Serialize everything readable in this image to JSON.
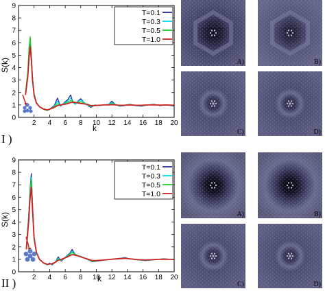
{
  "chart_data": [
    {
      "type": "line",
      "panel_label": "I )",
      "xlabel": "k",
      "ylabel": "S(k)",
      "xlim": [
        0,
        20
      ],
      "ylim": [
        0,
        9
      ],
      "xticks": [
        2,
        4,
        6,
        8,
        10,
        12,
        14,
        16,
        18,
        20
      ],
      "yticks": [
        0,
        1,
        2,
        3,
        4,
        5,
        6,
        7,
        8,
        9
      ],
      "grid": false,
      "legend": "top-right",
      "series": [
        {
          "name": "T=0.1",
          "color": "#1f2a9a",
          "x": [
            0.9,
            1.2,
            1.35,
            1.5,
            1.65,
            1.8,
            2.0,
            2.3,
            2.7,
            3.2,
            3.7,
            4.2,
            4.6,
            5.0,
            5.4,
            5.9,
            6.3,
            6.7,
            7.0,
            7.3,
            7.7,
            8.0,
            8.4,
            8.8,
            9.3,
            9.8,
            10.4,
            11.0,
            11.6,
            12.0,
            12.4,
            13.0,
            13.6,
            14.3,
            15.0,
            15.8,
            16.6,
            17.4,
            18.2,
            19.0,
            19.6,
            20.0
          ],
          "y": [
            2.0,
            3.5,
            5.2,
            6.3,
            5.0,
            3.2,
            1.9,
            1.2,
            0.85,
            0.65,
            0.55,
            0.75,
            0.95,
            1.55,
            0.9,
            1.2,
            1.4,
            1.8,
            1.2,
            1.05,
            1.35,
            1.5,
            1.2,
            1.0,
            0.8,
            1.0,
            0.95,
            1.0,
            1.05,
            1.3,
            1.05,
            0.9,
            0.95,
            1.05,
            0.95,
            0.9,
            1.0,
            1.05,
            0.95,
            1.0,
            0.95,
            0.9
          ]
        },
        {
          "name": "T=0.3",
          "color": "#00d8e8",
          "x": [
            0.9,
            1.2,
            1.35,
            1.5,
            1.65,
            1.8,
            2.0,
            2.3,
            2.7,
            3.2,
            3.7,
            4.2,
            4.6,
            5.0,
            5.4,
            5.9,
            6.3,
            6.7,
            7.0,
            7.3,
            7.7,
            8.0,
            8.4,
            8.8,
            9.3,
            9.8,
            10.4,
            11.0,
            11.6,
            12.0,
            12.4,
            13.0,
            13.6,
            14.3,
            15.0,
            15.8,
            16.6,
            17.4,
            18.2,
            19.0,
            19.6,
            20.0
          ],
          "y": [
            2.0,
            3.6,
            5.4,
            6.4,
            5.0,
            3.2,
            1.9,
            1.2,
            0.85,
            0.65,
            0.55,
            0.7,
            0.9,
            1.3,
            0.95,
            1.15,
            1.3,
            1.55,
            1.25,
            1.05,
            1.3,
            1.4,
            1.2,
            1.0,
            0.85,
            1.0,
            0.95,
            1.0,
            1.05,
            1.2,
            1.05,
            0.92,
            0.97,
            1.05,
            0.95,
            0.93,
            1.0,
            1.03,
            0.97,
            1.0,
            0.97,
            0.93
          ]
        },
        {
          "name": "T=0.5",
          "color": "#22cc22",
          "x": [
            0.9,
            1.2,
            1.35,
            1.5,
            1.65,
            1.8,
            2.0,
            2.3,
            2.7,
            3.2,
            3.7,
            4.2,
            4.6,
            5.0,
            5.4,
            5.9,
            6.3,
            6.7,
            7.0,
            7.3,
            7.7,
            8.0,
            8.4,
            8.8,
            9.3,
            9.8,
            10.4,
            11.0,
            11.6,
            12.0,
            12.4,
            13.0,
            13.6,
            14.3,
            15.0,
            15.8,
            16.6,
            17.4,
            18.2,
            19.0,
            19.6,
            20.0
          ],
          "y": [
            2.0,
            3.7,
            5.6,
            6.5,
            5.0,
            3.2,
            1.9,
            1.2,
            0.85,
            0.65,
            0.55,
            0.7,
            0.85,
            1.1,
            1.0,
            1.1,
            1.2,
            1.35,
            1.3,
            1.15,
            1.2,
            1.25,
            1.15,
            1.05,
            0.9,
            0.95,
            0.97,
            1.0,
            1.02,
            1.1,
            1.03,
            0.95,
            0.98,
            1.03,
            0.97,
            0.95,
            1.0,
            1.02,
            0.98,
            1.0,
            0.98,
            0.95
          ]
        },
        {
          "name": "T=1.0",
          "color": "#cc2222",
          "x": [
            0.9,
            1.2,
            1.35,
            1.5,
            1.65,
            1.8,
            2.0,
            2.3,
            2.7,
            3.2,
            3.7,
            4.2,
            4.6,
            5.0,
            5.4,
            5.9,
            6.3,
            6.7,
            7.0,
            7.3,
            7.7,
            8.0,
            8.4,
            8.8,
            9.3,
            9.8,
            10.4,
            11.0,
            11.6,
            12.0,
            12.4,
            13.0,
            13.6,
            14.3,
            15.0,
            15.8,
            16.6,
            17.4,
            18.2,
            19.0,
            19.6,
            20.0
          ],
          "y": [
            1.8,
            3.3,
            4.8,
            5.7,
            4.6,
            3.0,
            1.8,
            1.15,
            0.85,
            0.68,
            0.6,
            0.7,
            0.8,
            0.95,
            1.0,
            1.05,
            1.1,
            1.2,
            1.22,
            1.2,
            1.15,
            1.12,
            1.08,
            1.05,
            0.95,
            0.95,
            0.97,
            1.0,
            1.0,
            1.02,
            1.0,
            0.97,
            0.98,
            1.0,
            0.98,
            0.97,
            1.0,
            1.0,
            0.99,
            1.0,
            0.99,
            0.97
          ]
        }
      ]
    },
    {
      "type": "line",
      "panel_label": "II )",
      "xlabel": "k",
      "ylabel": "S(k)",
      "xlim": [
        0,
        20
      ],
      "ylim": [
        0,
        9
      ],
      "xticks": [
        2,
        4,
        6,
        8,
        10,
        12,
        14,
        16,
        18,
        20
      ],
      "yticks": [
        0,
        1,
        2,
        3,
        4,
        5,
        6,
        7,
        8,
        9
      ],
      "grid": false,
      "legend": "top-right",
      "series": [
        {
          "name": "T=0.1",
          "color": "#1f2a9a",
          "x": [
            1.0,
            1.3,
            1.5,
            1.65,
            1.8,
            2.0,
            2.3,
            2.7,
            3.2,
            3.7,
            4.0,
            4.3,
            4.7,
            5.1,
            5.5,
            5.9,
            6.3,
            6.6,
            6.9,
            7.2,
            7.6,
            8.0,
            8.5,
            9.0,
            9.5,
            10.0,
            10.6,
            11.2,
            11.8,
            12.5,
            13.2,
            13.7,
            14.2,
            14.8,
            15.5,
            16.3,
            17.1,
            17.9,
            18.7,
            19.4,
            20.0
          ],
          "y": [
            2.0,
            4.5,
            6.8,
            7.9,
            5.5,
            2.8,
            1.6,
            1.0,
            0.7,
            0.55,
            0.7,
            0.55,
            0.75,
            1.2,
            0.85,
            1.1,
            1.35,
            1.5,
            1.8,
            1.45,
            1.3,
            1.25,
            1.1,
            0.95,
            0.8,
            0.85,
            0.9,
            0.95,
            1.0,
            1.05,
            1.1,
            1.15,
            1.05,
            1.0,
            0.95,
            0.9,
            0.95,
            1.0,
            1.05,
            1.0,
            1.0
          ]
        },
        {
          "name": "T=0.3",
          "color": "#00d8e8",
          "x": [
            1.0,
            1.3,
            1.5,
            1.65,
            1.8,
            2.0,
            2.3,
            2.7,
            3.2,
            3.7,
            4.0,
            4.3,
            4.7,
            5.1,
            5.5,
            5.9,
            6.3,
            6.6,
            6.9,
            7.2,
            7.6,
            8.0,
            8.5,
            9.0,
            9.5,
            10.0,
            10.6,
            11.2,
            11.8,
            12.5,
            13.2,
            13.7,
            14.2,
            14.8,
            15.5,
            16.3,
            17.1,
            17.9,
            18.7,
            19.4,
            20.0
          ],
          "y": [
            2.0,
            4.4,
            6.6,
            7.6,
            5.4,
            2.8,
            1.6,
            1.0,
            0.7,
            0.55,
            0.65,
            0.6,
            0.75,
            1.1,
            0.9,
            1.1,
            1.3,
            1.45,
            1.65,
            1.4,
            1.3,
            1.25,
            1.1,
            0.95,
            0.82,
            0.87,
            0.9,
            0.95,
            1.0,
            1.05,
            1.08,
            1.12,
            1.05,
            1.0,
            0.95,
            0.92,
            0.96,
            1.0,
            1.03,
            1.0,
            1.0
          ]
        },
        {
          "name": "T=0.5",
          "color": "#22cc22",
          "x": [
            1.0,
            1.3,
            1.5,
            1.65,
            1.8,
            2.0,
            2.3,
            2.7,
            3.2,
            3.7,
            4.0,
            4.3,
            4.7,
            5.1,
            5.5,
            5.9,
            6.3,
            6.6,
            6.9,
            7.2,
            7.6,
            8.0,
            8.5,
            9.0,
            9.5,
            10.0,
            10.6,
            11.2,
            11.8,
            12.5,
            13.2,
            13.7,
            14.2,
            14.8,
            15.5,
            16.3,
            17.1,
            17.9,
            18.7,
            19.4,
            20.0
          ],
          "y": [
            2.0,
            4.3,
            6.5,
            7.4,
            5.3,
            2.8,
            1.6,
            1.0,
            0.7,
            0.58,
            0.62,
            0.62,
            0.75,
            1.0,
            0.95,
            1.1,
            1.25,
            1.4,
            1.55,
            1.4,
            1.3,
            1.22,
            1.1,
            0.97,
            0.85,
            0.88,
            0.92,
            0.96,
            1.0,
            1.04,
            1.07,
            1.1,
            1.05,
            1.0,
            0.96,
            0.93,
            0.97,
            1.0,
            1.02,
            1.0,
            1.0
          ]
        },
        {
          "name": "T=1.0",
          "color": "#cc2222",
          "x": [
            1.0,
            1.3,
            1.5,
            1.65,
            1.8,
            2.0,
            2.3,
            2.7,
            3.2,
            3.7,
            4.0,
            4.3,
            4.7,
            5.1,
            5.5,
            5.9,
            6.3,
            6.6,
            6.9,
            7.2,
            7.6,
            8.0,
            8.5,
            9.0,
            9.5,
            10.0,
            10.6,
            11.2,
            11.8,
            12.5,
            13.2,
            13.7,
            14.2,
            14.8,
            15.5,
            16.3,
            17.1,
            17.9,
            18.7,
            19.4,
            20.0
          ],
          "y": [
            1.8,
            4.0,
            6.0,
            6.8,
            5.0,
            2.7,
            1.55,
            1.0,
            0.72,
            0.6,
            0.62,
            0.65,
            0.75,
            0.92,
            1.0,
            1.1,
            1.2,
            1.3,
            1.38,
            1.35,
            1.28,
            1.2,
            1.1,
            1.0,
            0.9,
            0.9,
            0.93,
            0.96,
            1.0,
            1.03,
            1.06,
            1.08,
            1.05,
            1.01,
            0.97,
            0.95,
            0.97,
            1.0,
            1.01,
            1.0,
            1.0
          ]
        }
      ]
    }
  ],
  "images": [
    {
      "label": "A)",
      "variant": "hex-dark"
    },
    {
      "label": "B)",
      "variant": "hex-bright"
    },
    {
      "label": "C)",
      "variant": "ring"
    },
    {
      "label": "D)",
      "variant": "ring"
    },
    {
      "label": "A)",
      "variant": "dark-core"
    },
    {
      "label": "B)",
      "variant": "dark-core"
    },
    {
      "label": "C)",
      "variant": "ring"
    },
    {
      "label": "D)",
      "variant": "ring"
    }
  ]
}
